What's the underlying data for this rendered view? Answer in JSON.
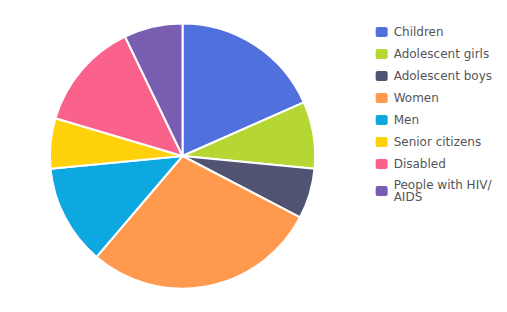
{
  "chart_data": {
    "type": "pie",
    "categories": [
      "Children",
      "Adolescent girls",
      "Adolescent boys",
      "Women",
      "Men",
      "Senior citizens",
      "Disabled",
      "People with HIV/\nAIDS"
    ],
    "values": [
      18,
      8,
      6,
      28,
      12,
      6,
      13,
      7
    ],
    "legend": "upper right"
  }
}
